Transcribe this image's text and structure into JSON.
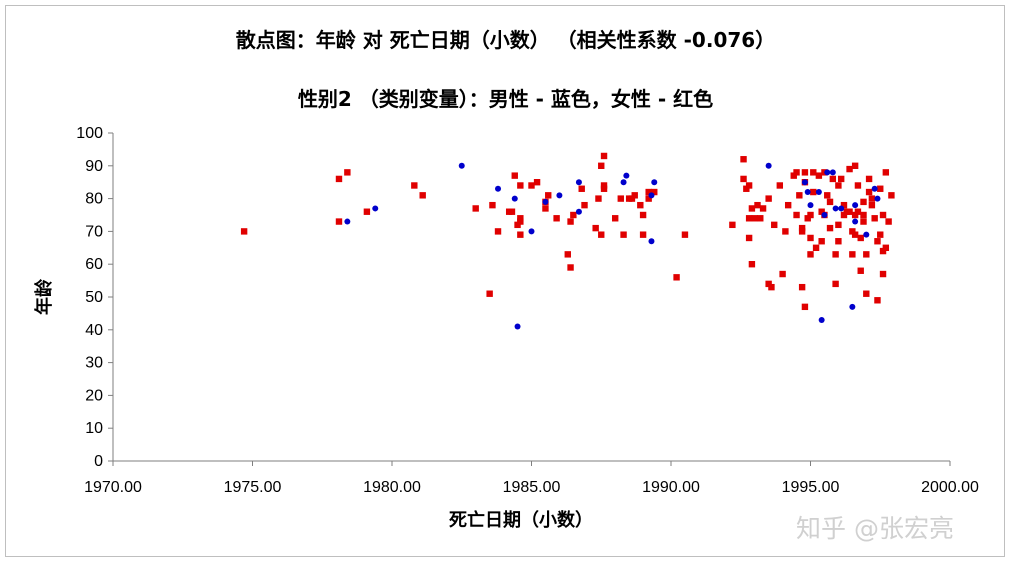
{
  "chart_data": {
    "type": "scatter",
    "title": "散点图：年龄 对 死亡日期（小数）   （相关性系数 -0.076）",
    "subtitle": "性别2 （类别变量）：男性 - 蓝色，女性 - 红色",
    "xlabel": "死亡日期（小数）",
    "ylabel": "年龄",
    "xlim": [
      1970,
      2000
    ],
    "ylim": [
      0,
      100
    ],
    "x_ticks": [
      "1970.00",
      "1975.00",
      "1980.00",
      "1985.00",
      "1990.00",
      "1995.00",
      "2000.00"
    ],
    "y_ticks": [
      "0",
      "10",
      "20",
      "30",
      "40",
      "50",
      "60",
      "70",
      "80",
      "90",
      "100"
    ],
    "grid": false,
    "legend": "none",
    "series": [
      {
        "color": "#e00000",
        "marker": "square",
        "points": [
          [
            1974.7,
            70
          ],
          [
            1978.1,
            86
          ],
          [
            1978.1,
            73
          ],
          [
            1978.4,
            88
          ],
          [
            1979.1,
            76
          ],
          [
            1980.8,
            84
          ],
          [
            1981.1,
            81
          ],
          [
            1983.0,
            77
          ],
          [
            1983.5,
            51
          ],
          [
            1983.6,
            78
          ],
          [
            1983.8,
            70
          ],
          [
            1984.2,
            76
          ],
          [
            1984.3,
            76
          ],
          [
            1984.4,
            87
          ],
          [
            1984.5,
            72
          ],
          [
            1984.6,
            74
          ],
          [
            1984.6,
            73
          ],
          [
            1984.6,
            69
          ],
          [
            1984.6,
            84
          ],
          [
            1985.0,
            84
          ],
          [
            1985.2,
            85
          ],
          [
            1985.5,
            79
          ],
          [
            1985.5,
            77
          ],
          [
            1985.6,
            81
          ],
          [
            1985.9,
            74
          ],
          [
            1986.3,
            63
          ],
          [
            1986.4,
            73
          ],
          [
            1986.4,
            59
          ],
          [
            1986.5,
            75
          ],
          [
            1986.8,
            83
          ],
          [
            1986.9,
            78
          ],
          [
            1987.3,
            71
          ],
          [
            1987.4,
            80
          ],
          [
            1987.5,
            69
          ],
          [
            1987.5,
            90
          ],
          [
            1987.6,
            83
          ],
          [
            1987.6,
            84
          ],
          [
            1987.6,
            93
          ],
          [
            1988.0,
            74
          ],
          [
            1988.2,
            80
          ],
          [
            1988.3,
            69
          ],
          [
            1988.5,
            80
          ],
          [
            1988.6,
            80
          ],
          [
            1988.7,
            81
          ],
          [
            1988.9,
            78
          ],
          [
            1989.0,
            69
          ],
          [
            1989.0,
            75
          ],
          [
            1989.2,
            80
          ],
          [
            1989.2,
            82
          ],
          [
            1989.4,
            82
          ],
          [
            1990.2,
            56
          ],
          [
            1990.5,
            69
          ],
          [
            1992.2,
            72
          ],
          [
            1992.6,
            92
          ],
          [
            1992.6,
            86
          ],
          [
            1992.7,
            83
          ],
          [
            1992.8,
            84
          ],
          [
            1992.8,
            74
          ],
          [
            1992.8,
            68
          ],
          [
            1992.9,
            77
          ],
          [
            1992.9,
            60
          ],
          [
            1993.0,
            74
          ],
          [
            1993.1,
            78
          ],
          [
            1993.2,
            74
          ],
          [
            1993.3,
            77
          ],
          [
            1993.5,
            80
          ],
          [
            1993.5,
            54
          ],
          [
            1993.6,
            53
          ],
          [
            1993.7,
            72
          ],
          [
            1993.9,
            84
          ],
          [
            1994.0,
            57
          ],
          [
            1994.1,
            70
          ],
          [
            1994.2,
            78
          ],
          [
            1994.4,
            87
          ],
          [
            1994.5,
            88
          ],
          [
            1994.5,
            75
          ],
          [
            1994.6,
            81
          ],
          [
            1994.7,
            70
          ],
          [
            1994.7,
            71
          ],
          [
            1994.7,
            53
          ],
          [
            1994.8,
            88
          ],
          [
            1994.8,
            85
          ],
          [
            1994.8,
            47
          ],
          [
            1994.9,
            74
          ],
          [
            1995.0,
            63
          ],
          [
            1995.0,
            75
          ],
          [
            1995.0,
            68
          ],
          [
            1995.1,
            88
          ],
          [
            1995.1,
            82
          ],
          [
            1995.2,
            65
          ],
          [
            1995.3,
            87
          ],
          [
            1995.4,
            76
          ],
          [
            1995.4,
            67
          ],
          [
            1995.5,
            88
          ],
          [
            1995.5,
            75
          ],
          [
            1995.6,
            81
          ],
          [
            1995.7,
            79
          ],
          [
            1995.7,
            71
          ],
          [
            1995.8,
            86
          ],
          [
            1995.9,
            54
          ],
          [
            1995.9,
            63
          ],
          [
            1996.0,
            84
          ],
          [
            1996.0,
            72
          ],
          [
            1996.0,
            67
          ],
          [
            1996.1,
            86
          ],
          [
            1996.2,
            78
          ],
          [
            1996.2,
            75
          ],
          [
            1996.3,
            76
          ],
          [
            1996.4,
            76
          ],
          [
            1996.4,
            89
          ],
          [
            1996.5,
            70
          ],
          [
            1996.5,
            63
          ],
          [
            1996.6,
            90
          ],
          [
            1996.6,
            75
          ],
          [
            1996.6,
            69
          ],
          [
            1996.7,
            84
          ],
          [
            1996.7,
            76
          ],
          [
            1996.8,
            58
          ],
          [
            1996.8,
            68
          ],
          [
            1996.9,
            75
          ],
          [
            1996.9,
            73
          ],
          [
            1996.9,
            79
          ],
          [
            1997.0,
            63
          ],
          [
            1997.0,
            51
          ],
          [
            1997.1,
            82
          ],
          [
            1997.1,
            86
          ],
          [
            1997.2,
            78
          ],
          [
            1997.2,
            80
          ],
          [
            1997.3,
            74
          ],
          [
            1997.4,
            49
          ],
          [
            1997.4,
            67
          ],
          [
            1997.5,
            69
          ],
          [
            1997.5,
            83
          ],
          [
            1997.6,
            57
          ],
          [
            1997.6,
            75
          ],
          [
            1997.6,
            64
          ],
          [
            1997.7,
            65
          ],
          [
            1997.7,
            88
          ],
          [
            1997.8,
            73
          ],
          [
            1997.9,
            81
          ]
        ]
      },
      {
        "color": "#0000cc",
        "marker": "circle",
        "points": [
          [
            1978.4,
            73
          ],
          [
            1979.4,
            77
          ],
          [
            1982.5,
            90
          ],
          [
            1983.8,
            83
          ],
          [
            1984.5,
            41
          ],
          [
            1984.4,
            80
          ],
          [
            1985.0,
            70
          ],
          [
            1985.5,
            79
          ],
          [
            1986.0,
            81
          ],
          [
            1986.7,
            76
          ],
          [
            1986.7,
            85
          ],
          [
            1988.3,
            85
          ],
          [
            1988.4,
            87
          ],
          [
            1989.3,
            67
          ],
          [
            1989.4,
            85
          ],
          [
            1989.3,
            81
          ],
          [
            1993.5,
            90
          ],
          [
            1994.8,
            85
          ],
          [
            1994.9,
            82
          ],
          [
            1995.0,
            78
          ],
          [
            1995.3,
            82
          ],
          [
            1995.4,
            43
          ],
          [
            1995.5,
            75
          ],
          [
            1995.6,
            88
          ],
          [
            1995.8,
            88
          ],
          [
            1995.9,
            77
          ],
          [
            1996.1,
            77
          ],
          [
            1996.5,
            47
          ],
          [
            1996.6,
            78
          ],
          [
            1996.6,
            73
          ],
          [
            1997.0,
            69
          ],
          [
            1997.3,
            83
          ],
          [
            1997.4,
            80
          ]
        ]
      }
    ]
  },
  "watermark": "知乎 @张宏亮"
}
